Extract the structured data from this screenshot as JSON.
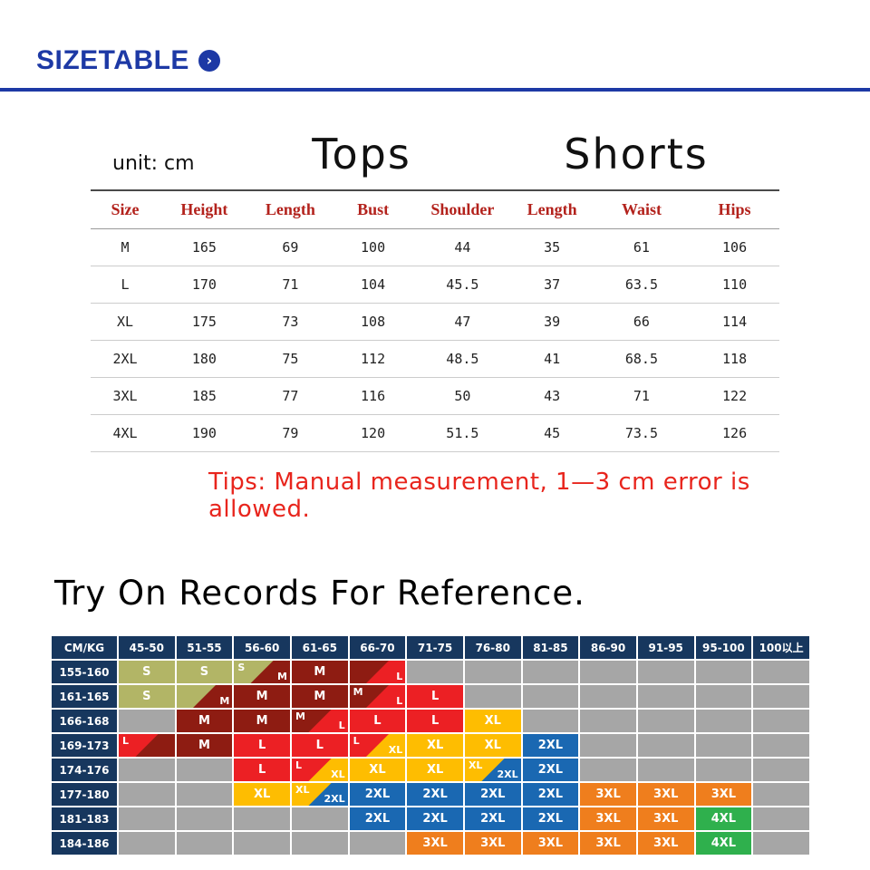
{
  "header": {
    "title": "SIZETABLE"
  },
  "size_table": {
    "unit_label": "unit: cm",
    "tops_label": "Tops",
    "shorts_label": "Shorts",
    "columns": [
      "Size",
      "Height",
      "Length",
      "Bust",
      "Shoulder",
      "Length",
      "Waist",
      "Hips"
    ],
    "rows": [
      [
        "M",
        "165",
        "69",
        "100",
        "44",
        "35",
        "61",
        "106"
      ],
      [
        "L",
        "170",
        "71",
        "104",
        "45.5",
        "37",
        "63.5",
        "110"
      ],
      [
        "XL",
        "175",
        "73",
        "108",
        "47",
        "39",
        "66",
        "114"
      ],
      [
        "2XL",
        "180",
        "75",
        "112",
        "48.5",
        "41",
        "68.5",
        "118"
      ],
      [
        "3XL",
        "185",
        "77",
        "116",
        "50",
        "43",
        "71",
        "122"
      ],
      [
        "4XL",
        "190",
        "79",
        "120",
        "51.5",
        "45",
        "73.5",
        "126"
      ]
    ],
    "tips": "Tips: Manual measurement, 1—3 cm error is allowed."
  },
  "try_on": {
    "title": "Try On Records For Reference.",
    "columns": [
      "CM/KG",
      "45-50",
      "51-55",
      "56-60",
      "61-65",
      "66-70",
      "71-75",
      "76-80",
      "81-85",
      "86-90",
      "91-95",
      "95-100",
      "100以上"
    ],
    "palette": {
      "navy": "#17375e",
      "gray": "#a6a6a6",
      "S": "#b2b566",
      "M": "#8e1c12",
      "L": "#ec2024",
      "XL": "#febd01",
      "2XL": "#1a68b2",
      "3XL": "#ef7e1d",
      "4XL": "#2fb04d"
    },
    "rows": [
      {
        "label": "155-160",
        "cells": [
          {
            "t": "S",
            "k": "S"
          },
          {
            "t": "S",
            "k": "S"
          },
          {
            "diag": 1,
            "t1": "S",
            "k1": "S",
            "t2": "M",
            "k2": "M"
          },
          {
            "t": "M",
            "k": "M"
          },
          {
            "diag": 1,
            "t1": "",
            "k1": "M",
            "t2": "L",
            "k2": "L"
          },
          {
            "t": "",
            "k": "gray"
          },
          {
            "t": "",
            "k": "gray"
          },
          {
            "t": "",
            "k": "gray"
          },
          {
            "t": "",
            "k": "gray"
          },
          {
            "t": "",
            "k": "gray"
          },
          {
            "t": "",
            "k": "gray"
          },
          {
            "t": "",
            "k": "gray"
          }
        ]
      },
      {
        "label": "161-165",
        "cells": [
          {
            "t": "S",
            "k": "S"
          },
          {
            "diag": 1,
            "t1": "",
            "k1": "S",
            "t2": "M",
            "k2": "M"
          },
          {
            "t": "M",
            "k": "M"
          },
          {
            "t": "M",
            "k": "M"
          },
          {
            "diag": 1,
            "t1": "M",
            "k1": "M",
            "t2": "L",
            "k2": "L"
          },
          {
            "t": "L",
            "k": "L"
          },
          {
            "t": "",
            "k": "gray"
          },
          {
            "t": "",
            "k": "gray"
          },
          {
            "t": "",
            "k": "gray"
          },
          {
            "t": "",
            "k": "gray"
          },
          {
            "t": "",
            "k": "gray"
          },
          {
            "t": "",
            "k": "gray"
          }
        ]
      },
      {
        "label": "166-168",
        "cells": [
          {
            "t": "",
            "k": "gray"
          },
          {
            "t": "M",
            "k": "M"
          },
          {
            "t": "M",
            "k": "M"
          },
          {
            "diag": 1,
            "t1": "M",
            "k1": "M",
            "t2": "L",
            "k2": "L"
          },
          {
            "t": "L",
            "k": "L"
          },
          {
            "t": "L",
            "k": "L"
          },
          {
            "t": "XL",
            "k": "XL"
          },
          {
            "t": "",
            "k": "gray"
          },
          {
            "t": "",
            "k": "gray"
          },
          {
            "t": "",
            "k": "gray"
          },
          {
            "t": "",
            "k": "gray"
          },
          {
            "t": "",
            "k": "gray"
          }
        ]
      },
      {
        "label": "169-173",
        "cells": [
          {
            "diag": 1,
            "t1": "L",
            "k1": "L",
            "t2": "",
            "k2": "M"
          },
          {
            "t": "M",
            "k": "M"
          },
          {
            "t": "L",
            "k": "L"
          },
          {
            "t": "L",
            "k": "L"
          },
          {
            "diag": 1,
            "t1": "L",
            "k1": "L",
            "t2": "XL",
            "k2": "XL"
          },
          {
            "t": "XL",
            "k": "XL"
          },
          {
            "t": "XL",
            "k": "XL"
          },
          {
            "t": "2XL",
            "k": "2XL"
          },
          {
            "t": "",
            "k": "gray"
          },
          {
            "t": "",
            "k": "gray"
          },
          {
            "t": "",
            "k": "gray"
          },
          {
            "t": "",
            "k": "gray"
          }
        ]
      },
      {
        "label": "174-176",
        "cells": [
          {
            "t": "",
            "k": "gray"
          },
          {
            "t": "",
            "k": "gray"
          },
          {
            "t": "L",
            "k": "L"
          },
          {
            "diag": 1,
            "t1": "L",
            "k1": "L",
            "t2": "XL",
            "k2": "XL"
          },
          {
            "t": "XL",
            "k": "XL"
          },
          {
            "t": "XL",
            "k": "XL"
          },
          {
            "diag": 1,
            "t1": "XL",
            "k1": "XL",
            "t2": "2XL",
            "k2": "2XL"
          },
          {
            "t": "2XL",
            "k": "2XL"
          },
          {
            "t": "",
            "k": "gray"
          },
          {
            "t": "",
            "k": "gray"
          },
          {
            "t": "",
            "k": "gray"
          },
          {
            "t": "",
            "k": "gray"
          }
        ]
      },
      {
        "label": "177-180",
        "cells": [
          {
            "t": "",
            "k": "gray"
          },
          {
            "t": "",
            "k": "gray"
          },
          {
            "t": "XL",
            "k": "XL"
          },
          {
            "diag": 1,
            "t1": "XL",
            "k1": "XL",
            "t2": "2XL",
            "k2": "2XL"
          },
          {
            "t": "2XL",
            "k": "2XL"
          },
          {
            "t": "2XL",
            "k": "2XL"
          },
          {
            "t": "2XL",
            "k": "2XL"
          },
          {
            "t": "2XL",
            "k": "2XL"
          },
          {
            "t": "3XL",
            "k": "3XL"
          },
          {
            "t": "3XL",
            "k": "3XL"
          },
          {
            "t": "3XL",
            "k": "3XL"
          },
          {
            "t": "",
            "k": "gray"
          }
        ]
      },
      {
        "label": "181-183",
        "cells": [
          {
            "t": "",
            "k": "gray"
          },
          {
            "t": "",
            "k": "gray"
          },
          {
            "t": "",
            "k": "gray"
          },
          {
            "t": "",
            "k": "gray"
          },
          {
            "t": "2XL",
            "k": "2XL"
          },
          {
            "t": "2XL",
            "k": "2XL"
          },
          {
            "t": "2XL",
            "k": "2XL"
          },
          {
            "t": "2XL",
            "k": "2XL"
          },
          {
            "t": "3XL",
            "k": "3XL"
          },
          {
            "t": "3XL",
            "k": "3XL"
          },
          {
            "t": "4XL",
            "k": "4XL"
          },
          {
            "t": "",
            "k": "gray"
          }
        ]
      },
      {
        "label": "184-186",
        "cells": [
          {
            "t": "",
            "k": "gray"
          },
          {
            "t": "",
            "k": "gray"
          },
          {
            "t": "",
            "k": "gray"
          },
          {
            "t": "",
            "k": "gray"
          },
          {
            "t": "",
            "k": "gray"
          },
          {
            "t": "3XL",
            "k": "3XL"
          },
          {
            "t": "3XL",
            "k": "3XL"
          },
          {
            "t": "3XL",
            "k": "3XL"
          },
          {
            "t": "3XL",
            "k": "3XL"
          },
          {
            "t": "3XL",
            "k": "3XL"
          },
          {
            "t": "4XL",
            "k": "4XL"
          },
          {
            "t": "",
            "k": "gray"
          }
        ]
      }
    ]
  },
  "colors": {
    "brand_blue": "#1d39a5",
    "header_red": "#b3221c",
    "tips_red": "#e8251d"
  }
}
